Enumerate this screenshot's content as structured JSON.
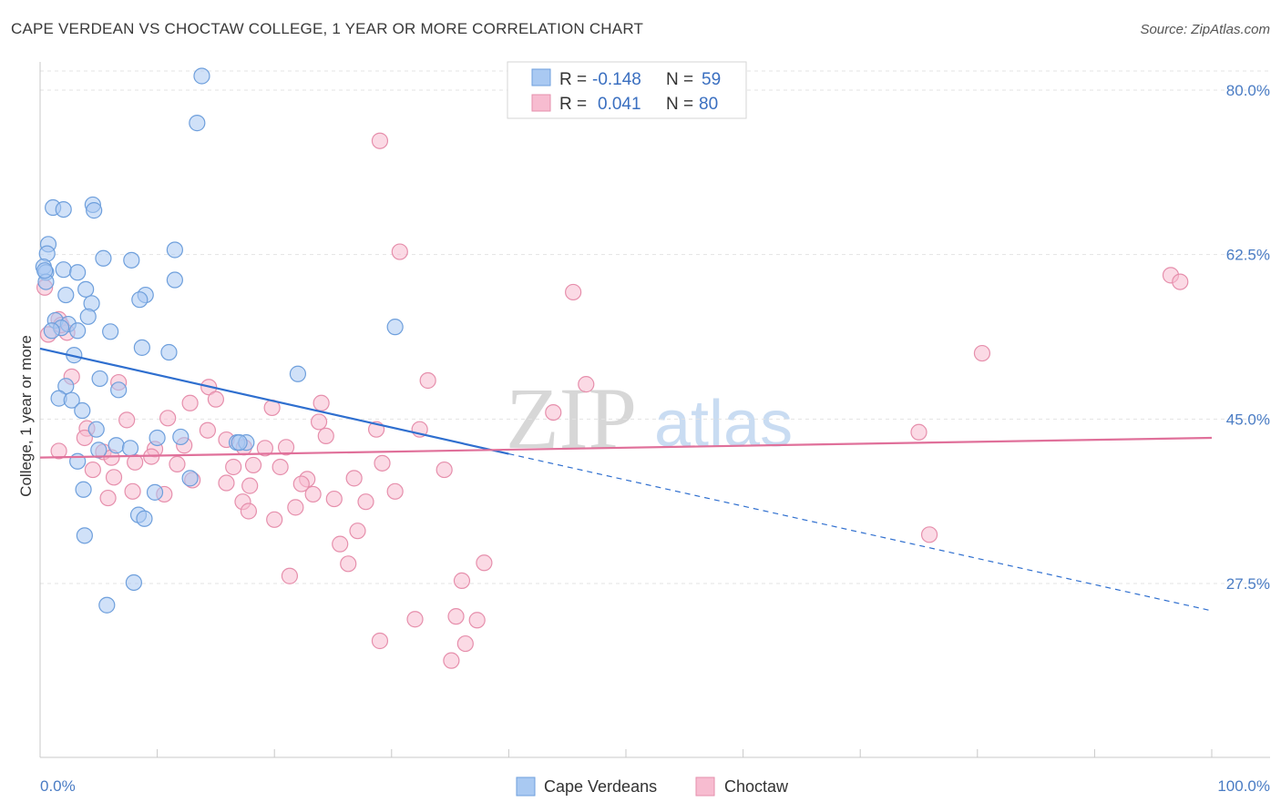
{
  "title": "CAPE VERDEAN VS CHOCTAW COLLEGE, 1 YEAR OR MORE CORRELATION CHART",
  "source": "Source: ZipAtlas.com",
  "watermark": {
    "zip": "ZIP",
    "atlas": "atlas"
  },
  "colors": {
    "blue_fill": "#a9c9f2",
    "blue_stroke": "#6e9fdc",
    "blue_line": "#2f6fcf",
    "pink_fill": "#f7bcd0",
    "pink_stroke": "#e68fac",
    "pink_line": "#e0709a",
    "tick_text": "#4a7cc4",
    "grid": "#e3e3e3"
  },
  "legend": {
    "rows": [
      {
        "r_label": "R =",
        "r_value": "-0.148",
        "n_label": "N =",
        "n_value": "59"
      },
      {
        "r_label": "R =",
        "r_value": "0.041",
        "n_label": "N =",
        "n_value": "80"
      }
    ]
  },
  "chart_data": {
    "type": "scatter",
    "title": "CAPE VERDEAN VS CHOCTAW COLLEGE, 1 YEAR OR MORE CORRELATION CHART",
    "xlabel": "",
    "ylabel": "College, 1 year or more",
    "xlim": [
      0,
      100
    ],
    "ylim": [
      9,
      83
    ],
    "x_tick_labels": [
      {
        "value": 0,
        "label": "0.0%"
      },
      {
        "value": 100,
        "label": "100.0%"
      }
    ],
    "y_tick_labels": [
      {
        "value": 27.5,
        "label": "27.5%"
      },
      {
        "value": 45.0,
        "label": "45.0%"
      },
      {
        "value": 62.5,
        "label": "62.5%"
      },
      {
        "value": 80.0,
        "label": "80.0%"
      }
    ],
    "grid": true,
    "legend_position": "top-center",
    "series": [
      {
        "name": "Cape Verdeans",
        "color": "#a9c9f2",
        "trend": {
          "x": [
            0,
            40
          ],
          "y": [
            52.5,
            41.3
          ],
          "dashed_extension_to": [
            100,
            24.6
          ]
        },
        "points": [
          [
            13.8,
            81.5
          ],
          [
            13.4,
            76.5
          ],
          [
            1.1,
            67.5
          ],
          [
            2.0,
            67.3
          ],
          [
            4.5,
            67.8
          ],
          [
            4.6,
            67.2
          ],
          [
            0.7,
            63.6
          ],
          [
            0.6,
            62.6
          ],
          [
            5.4,
            62.1
          ],
          [
            7.8,
            61.9
          ],
          [
            11.5,
            63.0
          ],
          [
            0.3,
            61.2
          ],
          [
            0.5,
            60.6
          ],
          [
            2.0,
            60.9
          ],
          [
            3.2,
            60.6
          ],
          [
            11.5,
            59.8
          ],
          [
            0.5,
            59.6
          ],
          [
            3.9,
            58.8
          ],
          [
            2.2,
            58.2
          ],
          [
            4.4,
            57.3
          ],
          [
            9.0,
            58.2
          ],
          [
            8.5,
            57.7
          ],
          [
            1.3,
            55.5
          ],
          [
            4.1,
            55.9
          ],
          [
            2.4,
            55.1
          ],
          [
            1.8,
            54.7
          ],
          [
            1.0,
            54.4
          ],
          [
            3.2,
            54.4
          ],
          [
            6.0,
            54.3
          ],
          [
            30.3,
            54.8
          ],
          [
            8.7,
            52.6
          ],
          [
            11.0,
            52.1
          ],
          [
            2.9,
            51.8
          ],
          [
            22.0,
            49.8
          ],
          [
            5.1,
            49.3
          ],
          [
            2.2,
            48.5
          ],
          [
            6.7,
            48.1
          ],
          [
            1.6,
            47.2
          ],
          [
            2.7,
            47.0
          ],
          [
            3.6,
            45.9
          ],
          [
            4.8,
            43.9
          ],
          [
            10.0,
            43.0
          ],
          [
            12.0,
            43.1
          ],
          [
            16.8,
            42.5
          ],
          [
            17.6,
            42.5
          ],
          [
            6.5,
            42.2
          ],
          [
            5.0,
            41.7
          ],
          [
            7.7,
            41.9
          ],
          [
            3.2,
            40.5
          ],
          [
            12.8,
            38.7
          ],
          [
            3.7,
            37.5
          ],
          [
            9.8,
            37.2
          ],
          [
            8.4,
            34.8
          ],
          [
            8.9,
            34.4
          ],
          [
            3.8,
            32.6
          ],
          [
            8.0,
            27.6
          ],
          [
            5.7,
            25.2
          ],
          [
            17.0,
            42.5
          ],
          [
            0.4,
            60.8
          ]
        ]
      },
      {
        "name": "Choctaw",
        "color": "#f7bcd0",
        "trend": {
          "x": [
            0,
            100
          ],
          "y": [
            40.9,
            43.0
          ]
        },
        "points": [
          [
            29.0,
            74.6
          ],
          [
            30.7,
            62.8
          ],
          [
            45.5,
            58.5
          ],
          [
            96.5,
            60.3
          ],
          [
            97.3,
            59.6
          ],
          [
            80.4,
            52.0
          ],
          [
            0.4,
            59.0
          ],
          [
            1.6,
            55.6
          ],
          [
            2.3,
            54.2
          ],
          [
            1.8,
            55.0
          ],
          [
            0.7,
            54.0
          ],
          [
            33.1,
            49.1
          ],
          [
            46.6,
            48.7
          ],
          [
            2.7,
            49.5
          ],
          [
            6.7,
            48.9
          ],
          [
            14.4,
            48.4
          ],
          [
            15.0,
            47.1
          ],
          [
            12.8,
            46.7
          ],
          [
            24.0,
            46.7
          ],
          [
            19.8,
            46.2
          ],
          [
            43.8,
            45.7
          ],
          [
            10.9,
            45.1
          ],
          [
            7.4,
            44.9
          ],
          [
            23.8,
            44.7
          ],
          [
            4.0,
            44.0
          ],
          [
            28.7,
            43.9
          ],
          [
            32.4,
            43.9
          ],
          [
            75.0,
            43.6
          ],
          [
            14.3,
            43.8
          ],
          [
            24.4,
            43.2
          ],
          [
            3.8,
            43.0
          ],
          [
            15.9,
            42.8
          ],
          [
            12.3,
            42.2
          ],
          [
            17.4,
            42.0
          ],
          [
            19.2,
            41.9
          ],
          [
            21.0,
            42.0
          ],
          [
            9.8,
            41.8
          ],
          [
            5.4,
            41.5
          ],
          [
            1.6,
            41.6
          ],
          [
            9.5,
            41.0
          ],
          [
            6.1,
            40.9
          ],
          [
            8.1,
            40.4
          ],
          [
            11.7,
            40.2
          ],
          [
            16.5,
            39.9
          ],
          [
            18.2,
            40.1
          ],
          [
            20.5,
            39.9
          ],
          [
            29.2,
            40.3
          ],
          [
            34.5,
            39.6
          ],
          [
            4.5,
            39.6
          ],
          [
            6.3,
            38.8
          ],
          [
            13.0,
            38.5
          ],
          [
            22.8,
            38.6
          ],
          [
            26.8,
            38.7
          ],
          [
            15.9,
            38.2
          ],
          [
            17.9,
            37.9
          ],
          [
            22.3,
            38.1
          ],
          [
            30.3,
            37.3
          ],
          [
            7.9,
            37.3
          ],
          [
            10.6,
            37.0
          ],
          [
            23.3,
            37.0
          ],
          [
            5.8,
            36.6
          ],
          [
            17.3,
            36.2
          ],
          [
            25.1,
            36.5
          ],
          [
            27.8,
            36.2
          ],
          [
            21.8,
            35.6
          ],
          [
            17.8,
            35.2
          ],
          [
            20.0,
            34.3
          ],
          [
            27.1,
            33.1
          ],
          [
            75.9,
            32.7
          ],
          [
            25.6,
            31.7
          ],
          [
            26.3,
            29.6
          ],
          [
            37.9,
            29.7
          ],
          [
            21.3,
            28.3
          ],
          [
            36.0,
            27.8
          ],
          [
            32.0,
            23.7
          ],
          [
            35.5,
            24.0
          ],
          [
            37.3,
            23.6
          ],
          [
            29.0,
            21.4
          ],
          [
            36.3,
            21.1
          ],
          [
            35.1,
            19.3
          ]
        ]
      }
    ]
  },
  "bottom_legend": [
    {
      "label": "Cape Verdeans"
    },
    {
      "label": "Choctaw"
    }
  ]
}
